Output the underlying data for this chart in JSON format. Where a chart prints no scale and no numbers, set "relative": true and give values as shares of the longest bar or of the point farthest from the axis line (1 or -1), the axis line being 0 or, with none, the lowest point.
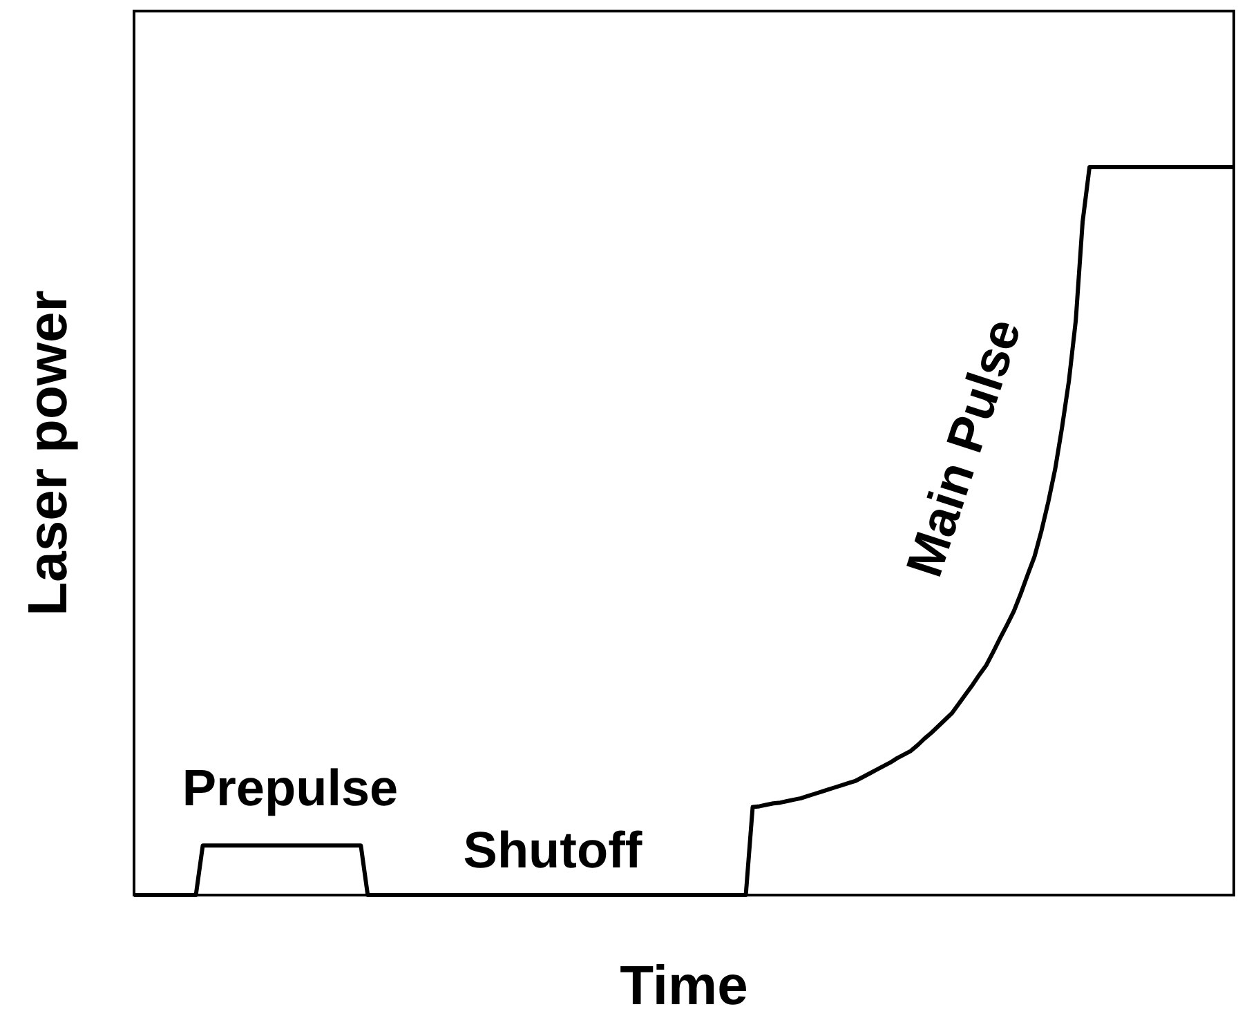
{
  "chart_data": {
    "type": "line",
    "relative": true,
    "xlabel": "Time",
    "ylabel": "Laser power",
    "marker": "none",
    "line_style": "solid",
    "categories": [
      null,
      null,
      null,
      null,
      null,
      null,
      null,
      null,
      null,
      null,
      null,
      null,
      null,
      null,
      null,
      null,
      null,
      null,
      null,
      null,
      null,
      null,
      null,
      null,
      null,
      null,
      null,
      null,
      null,
      null,
      null,
      null,
      null,
      null,
      null,
      null,
      null,
      null,
      null,
      null,
      null,
      null,
      null,
      null,
      null,
      null,
      null,
      null,
      null,
      null,
      null,
      null,
      null,
      null,
      null,
      null,
      null,
      null,
      null,
      null,
      null,
      null,
      null,
      null,
      null,
      null,
      null,
      null,
      null,
      null,
      null,
      null,
      null,
      null,
      null,
      null,
      null,
      null,
      null,
      null,
      null,
      null,
      null,
      null,
      null,
      null,
      null,
      null,
      null,
      null,
      null,
      null,
      null,
      null,
      null,
      null,
      null,
      null,
      null,
      null,
      null,
      null,
      null,
      null,
      null,
      null,
      null,
      null,
      null,
      null,
      null,
      null,
      null,
      null,
      null,
      null,
      null,
      null,
      null,
      null,
      null,
      null,
      null,
      null,
      null,
      null,
      null,
      null,
      null,
      null,
      null,
      null,
      null,
      null,
      null,
      null,
      null,
      null,
      null,
      null,
      null,
      null,
      null,
      null,
      null,
      null,
      null,
      null,
      null,
      null,
      null,
      null,
      null,
      null,
      null,
      null,
      null,
      null,
      null,
      null,
      null
    ],
    "series": [
      {
        "color": "#000000",
        "values": [
          0,
          0,
          0,
          0,
          0,
          0,
          0,
          0,
          0,
          0,
          0.068,
          0.068,
          0.068,
          0.068,
          0.068,
          0.068,
          0.068,
          0.068,
          0.068,
          0.068,
          0.068,
          0.068,
          0.068,
          0.068,
          0.068,
          0.068,
          0.068,
          0.068,
          0.068,
          0.068,
          0.068,
          0.068,
          0.068,
          0.068,
          0,
          0,
          0,
          0,
          0,
          0,
          0,
          0,
          0,
          0,
          0,
          0,
          0,
          0,
          0,
          0,
          0,
          0,
          0,
          0,
          0,
          0,
          0,
          0,
          0,
          0,
          0,
          0,
          0,
          0,
          0,
          0,
          0,
          0,
          0,
          0,
          0,
          0,
          0,
          0,
          0,
          0,
          0,
          0,
          0,
          0,
          0,
          0,
          0,
          0,
          0,
          0,
          0,
          0,
          0,
          0,
          0.121,
          0.122,
          0.124,
          0.126,
          0.127,
          0.129,
          0.131,
          0.133,
          0.136,
          0.139,
          0.142,
          0.145,
          0.148,
          0.151,
          0.154,
          0.157,
          0.162,
          0.167,
          0.172,
          0.177,
          0.182,
          0.188,
          0.193,
          0.198,
          0.206,
          0.215,
          0.223,
          0.232,
          0.241,
          0.25,
          0.263,
          0.276,
          0.289,
          0.303,
          0.316,
          0.334,
          0.353,
          0.371,
          0.39,
          0.414,
          0.44,
          0.465,
          0.5,
          0.54,
          0.585,
          0.642,
          0.706,
          0.789,
          0.925,
          1,
          1,
          1,
          1,
          1,
          1,
          1,
          1,
          1,
          1,
          1,
          1,
          1,
          1,
          1,
          1,
          1,
          1,
          1,
          1,
          1,
          1
        ]
      }
    ],
    "annotations": [
      "Prepulse",
      "Main Pulse",
      "Shutoff"
    ]
  }
}
